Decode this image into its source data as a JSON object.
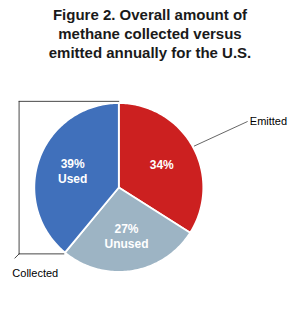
{
  "chart_data": {
    "type": "pie",
    "title": "Figure 2. Overall amount of\nmethane collected versus\nemitted annually for the U.S.",
    "categories": [
      null,
      "Unused",
      "Used"
    ],
    "values": [
      34,
      27,
      39
    ],
    "value_labels": [
      "34%",
      "27%",
      "39%"
    ],
    "colors": [
      "#cc2020",
      "#9db4c4",
      "#4070bb"
    ],
    "data_labels": true,
    "annotations": [
      "Emitted",
      "Collected"
    ]
  }
}
